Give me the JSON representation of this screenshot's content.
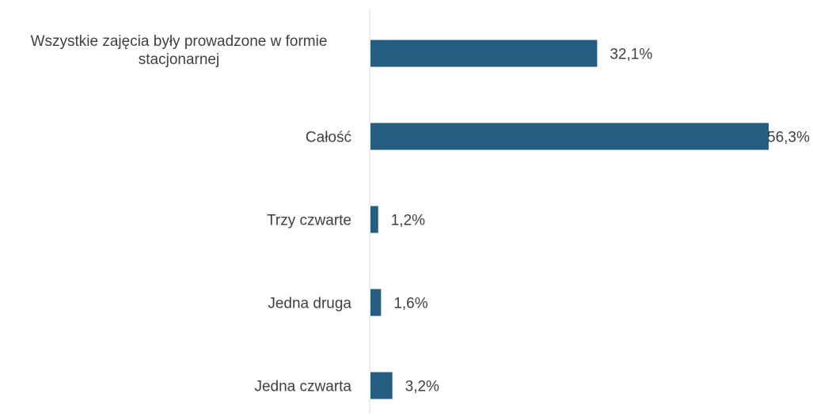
{
  "chart_data": {
    "type": "bar",
    "orientation": "horizontal",
    "categories": [
      [
        "Wszystkie zajęcia były prowadzone w formie",
        "stacjonarnej"
      ],
      [
        "Całość"
      ],
      [
        "Trzy czwarte"
      ],
      [
        "Jedna druga"
      ],
      [
        "Jedna czwarta"
      ]
    ],
    "values": [
      32.1,
      56.3,
      1.2,
      1.6,
      3.2
    ],
    "value_labels": [
      "32,1%",
      "56,3%",
      "1,2%",
      "1,6%",
      "3,2%"
    ],
    "title": "",
    "xlabel": "",
    "ylabel": "",
    "xlim": [
      0,
      56.3
    ],
    "grid": false,
    "legend": "none",
    "colors": {
      "bar": "#255E83",
      "axis": "#D9D9D9",
      "text": "#404040"
    }
  }
}
